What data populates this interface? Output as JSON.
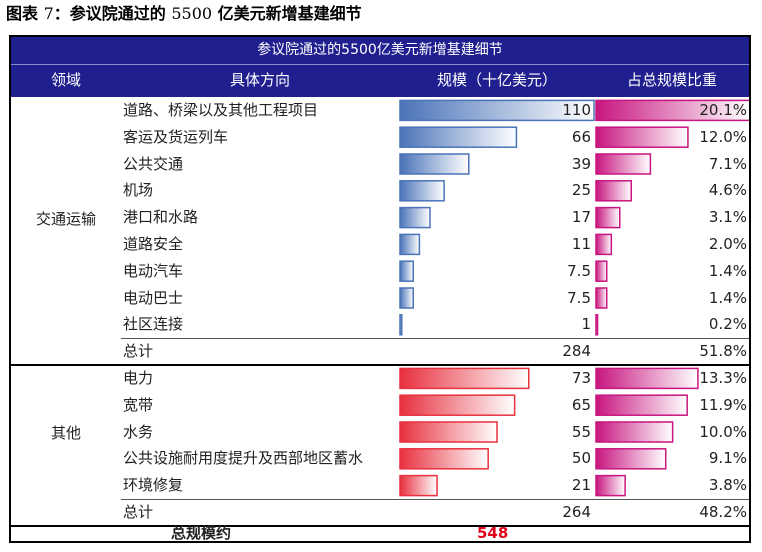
{
  "figure": {
    "label": "图表",
    "number": "7",
    "text": "：参议院通过的",
    "amount": "5500",
    "text2": " 亿美元新增基建细节"
  },
  "table": {
    "title": "参议院通过的5500亿美元新增基建细节",
    "headers": {
      "domain": "领域",
      "direction": "具体方向",
      "scale": "规模（十亿美元）",
      "share": "占总规模比重"
    }
  },
  "colors": {
    "header_bg": "#1f1f8f",
    "transport_bar": "#4a73b8",
    "other_bar": "#e8303f",
    "share_bar": "#c8157f",
    "grand_total_value": "#e0001a"
  },
  "chart_data": {
    "type": "table",
    "title": "参议院通过的5500亿美元新增基建细节",
    "columns": [
      "领域",
      "具体方向",
      "规模（十亿美元）",
      "占总规模比重"
    ],
    "sections": [
      {
        "domain": "交通运输",
        "rows": [
          {
            "label": "道路、桥梁以及其他工程项目",
            "value": 110,
            "value_text": "110",
            "share": 20.1,
            "share_text": "20.1%"
          },
          {
            "label": "客运及货运列车",
            "value": 66,
            "value_text": "66",
            "share": 12.0,
            "share_text": "12.0%"
          },
          {
            "label": "公共交通",
            "value": 39,
            "value_text": "39",
            "share": 7.1,
            "share_text": "7.1%"
          },
          {
            "label": "机场",
            "value": 25,
            "value_text": "25",
            "share": 4.6,
            "share_text": "4.6%"
          },
          {
            "label": "港口和水路",
            "value": 17,
            "value_text": "17",
            "share": 3.1,
            "share_text": "3.1%"
          },
          {
            "label": "道路安全",
            "value": 11,
            "value_text": "11",
            "share": 2.0,
            "share_text": "2.0%"
          },
          {
            "label": "电动汽车",
            "value": 7.5,
            "value_text": "7.5",
            "share": 1.4,
            "share_text": "1.4%"
          },
          {
            "label": "电动巴士",
            "value": 7.5,
            "value_text": "7.5",
            "share": 1.4,
            "share_text": "1.4%"
          },
          {
            "label": "社区连接",
            "value": 1,
            "value_text": "1",
            "share": 0.2,
            "share_text": "0.2%"
          }
        ],
        "total": {
          "label": "总计",
          "value_text": "284",
          "share_text": "51.8%"
        }
      },
      {
        "domain": "其他",
        "rows": [
          {
            "label": "电力",
            "value": 73,
            "value_text": "73",
            "share": 13.3,
            "share_text": "13.3%"
          },
          {
            "label": "宽带",
            "value": 65,
            "value_text": "65",
            "share": 11.9,
            "share_text": "11.9%"
          },
          {
            "label": "水务",
            "value": 55,
            "value_text": "55",
            "share": 10.0,
            "share_text": "10.0%"
          },
          {
            "label": "公共设施耐用度提升及西部地区蓄水",
            "value": 50,
            "value_text": "50",
            "share": 9.1,
            "share_text": "9.1%"
          },
          {
            "label": "环境修复",
            "value": 21,
            "value_text": "21",
            "share": 3.8,
            "share_text": "3.8%"
          }
        ],
        "total": {
          "label": "总计",
          "value_text": "264",
          "share_text": "48.2%"
        }
      }
    ],
    "grand_total": {
      "label": "总规模约",
      "value_text": "548"
    }
  }
}
